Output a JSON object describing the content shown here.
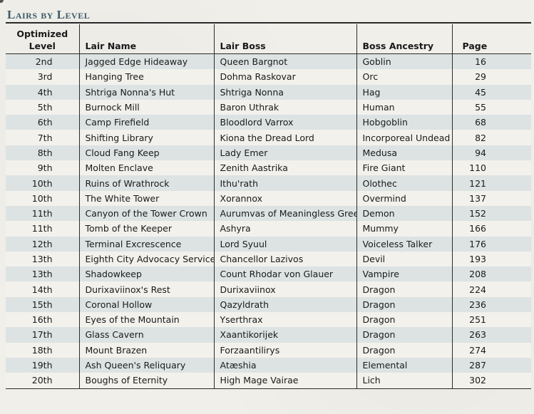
{
  "title": "Lairs by Level",
  "columns": {
    "level_line1": "Optimized",
    "level_line2": "Level",
    "name": "Lair Name",
    "boss": "Lair Boss",
    "ancestry": "Boss Ancestry",
    "page": "Page"
  },
  "rows": [
    {
      "level": "2nd",
      "name": "Jagged Edge Hideaway",
      "boss": "Queen Bargnot",
      "ancestry": "Goblin",
      "page": "16"
    },
    {
      "level": "3rd",
      "name": "Hanging Tree",
      "boss": "Dohma Raskovar",
      "ancestry": "Orc",
      "page": "29"
    },
    {
      "level": "4th",
      "name": "Shtriga Nonna's Hut",
      "boss": "Shtriga Nonna",
      "ancestry": "Hag",
      "page": "45"
    },
    {
      "level": "5th",
      "name": "Burnock Mill",
      "boss": "Baron Uthrak",
      "ancestry": "Human",
      "page": "55"
    },
    {
      "level": "6th",
      "name": "Camp Firefield",
      "boss": "Bloodlord Varrox",
      "ancestry": "Hobgoblin",
      "page": "68"
    },
    {
      "level": "7th",
      "name": "Shifting Library",
      "boss": "Kiona the Dread Lord",
      "ancestry": "Incorporeal Undead",
      "page": "82"
    },
    {
      "level": "8th",
      "name": "Cloud Fang Keep",
      "boss": "Lady Emer",
      "ancestry": "Medusa",
      "page": "94"
    },
    {
      "level": "9th",
      "name": "Molten Enclave",
      "boss": "Zenith Aastrika",
      "ancestry": "Fire Giant",
      "page": "110"
    },
    {
      "level": "10th",
      "name": "Ruins of Wrathrock",
      "boss": "Ithu'rath",
      "ancestry": "Olothec",
      "page": "121"
    },
    {
      "level": "10th",
      "name": "The White Tower",
      "boss": "Xorannox",
      "ancestry": "Overmind",
      "page": "137"
    },
    {
      "level": "11th",
      "name": "Canyon of the Tower Crown",
      "boss": "Aurumvas of Meaningless Greed",
      "ancestry": "Demon",
      "page": "152"
    },
    {
      "level": "11th",
      "name": "Tomb of the Keeper",
      "boss": "Ashyra",
      "ancestry": "Mummy",
      "page": "166"
    },
    {
      "level": "12th",
      "name": "Terminal Excrescence",
      "boss": "Lord Syuul",
      "ancestry": "Voiceless Talker",
      "page": "176"
    },
    {
      "level": "13th",
      "name": "Eighth City Advocacy Services",
      "boss": "Chancellor Lazivos",
      "ancestry": "Devil",
      "page": "193"
    },
    {
      "level": "13th",
      "name": "Shadowkeep",
      "boss": "Count Rhodar von Glauer",
      "ancestry": "Vampire",
      "page": "208"
    },
    {
      "level": "14th",
      "name": "Durixaviinox's Rest",
      "boss": "Durixaviinox",
      "ancestry": "Dragon",
      "page": "224"
    },
    {
      "level": "15th",
      "name": "Coronal Hollow",
      "boss": "Qazyldrath",
      "ancestry": "Dragon",
      "page": "236"
    },
    {
      "level": "16th",
      "name": "Eyes of the Mountain",
      "boss": "Yserthrax",
      "ancestry": "Dragon",
      "page": "251"
    },
    {
      "level": "17th",
      "name": "Glass Cavern",
      "boss": "Xaantikorijek",
      "ancestry": "Dragon",
      "page": "263"
    },
    {
      "level": "18th",
      "name": "Mount Brazen",
      "boss": "Forzaantilirys",
      "ancestry": "Dragon",
      "page": "274"
    },
    {
      "level": "19th",
      "name": "Ash Queen's Reliquary",
      "boss": "Atæshia",
      "ancestry": "Elemental",
      "page": "287"
    },
    {
      "level": "20th",
      "name": "Boughs of Eternity",
      "boss": "High Mage Vairae",
      "ancestry": "Lich",
      "page": "302"
    }
  ]
}
